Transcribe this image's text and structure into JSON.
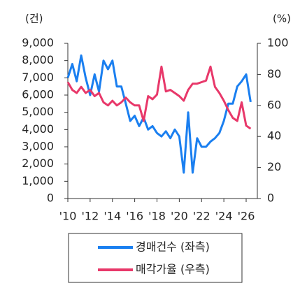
{
  "chart_data": {
    "type": "line",
    "y_label": "(건)",
    "y2_label": "(%)",
    "x": [
      2010,
      2010.4,
      2010.8,
      2011.2,
      2011.6,
      2012,
      2012.4,
      2012.8,
      2013.2,
      2013.6,
      2014,
      2014.4,
      2014.8,
      2015.2,
      2015.6,
      2016,
      2016.4,
      2016.8,
      2017.2,
      2017.6,
      2018,
      2018.4,
      2018.8,
      2019.2,
      2019.6,
      2020,
      2020.4,
      2020.8,
      2021.2,
      2021.6,
      2022,
      2022.4,
      2022.8,
      2023.2,
      2023.6,
      2024,
      2024.4,
      2024.8,
      2025.2,
      2025.6,
      2026,
      2026.4
    ],
    "series": [
      {
        "name": "경매건수 (좌측)",
        "color": "#1a7ff0",
        "axis": "y",
        "values": [
          7000,
          7800,
          6800,
          8300,
          7000,
          6000,
          7200,
          6200,
          8000,
          7500,
          8000,
          6500,
          6500,
          5500,
          4500,
          4800,
          4200,
          4700,
          4000,
          4200,
          3800,
          3600,
          3900,
          3500,
          4000,
          3600,
          1500,
          5000,
          1500,
          3500,
          3000,
          3000,
          3300,
          3500,
          3800,
          4500,
          5500,
          5500,
          6500,
          6800,
          7200,
          5600
        ]
      },
      {
        "name": "매각가율 (우측)",
        "color": "#e8386a",
        "axis": "y2",
        "values": [
          75,
          70,
          68,
          72,
          68,
          70,
          66,
          68,
          62,
          60,
          63,
          60,
          62,
          65,
          62,
          60,
          60,
          50,
          66,
          64,
          67,
          85,
          69,
          70,
          68,
          66,
          63,
          70,
          74,
          74,
          75,
          76,
          85,
          72,
          68,
          63,
          57,
          52,
          50,
          62,
          47,
          45
        ]
      }
    ],
    "xlim": [
      2010,
      2026.4
    ],
    "xticks": [
      {
        "value": 2010,
        "label": "'10"
      },
      {
        "value": 2012,
        "label": "'12"
      },
      {
        "value": 2014,
        "label": "'14"
      },
      {
        "value": 2016,
        "label": "'16"
      },
      {
        "value": 2018,
        "label": "'18"
      },
      {
        "value": 2020,
        "label": "'20"
      },
      {
        "value": 2022,
        "label": "'22"
      },
      {
        "value": 2024,
        "label": "'24"
      },
      {
        "value": 2026,
        "label": "'26"
      }
    ],
    "ylim": [
      0,
      9000
    ],
    "yticks": [
      0,
      {
        "value": 1000,
        "label": "1,000"
      },
      {
        "value": 2000,
        "label": "2,000"
      },
      {
        "value": 3000,
        "label": "3,000"
      },
      {
        "value": 4000,
        "label": "4,000"
      },
      {
        "value": 5000,
        "label": "5,000"
      },
      {
        "value": 6000,
        "label": "6,000"
      },
      {
        "value": 7000,
        "label": "7,000"
      },
      {
        "value": 8000,
        "label": "8,000"
      },
      {
        "value": 9000,
        "label": "9,000"
      }
    ],
    "y2lim": [
      0,
      100
    ],
    "y2ticks": [
      0,
      20,
      40,
      60,
      80,
      100
    ]
  }
}
